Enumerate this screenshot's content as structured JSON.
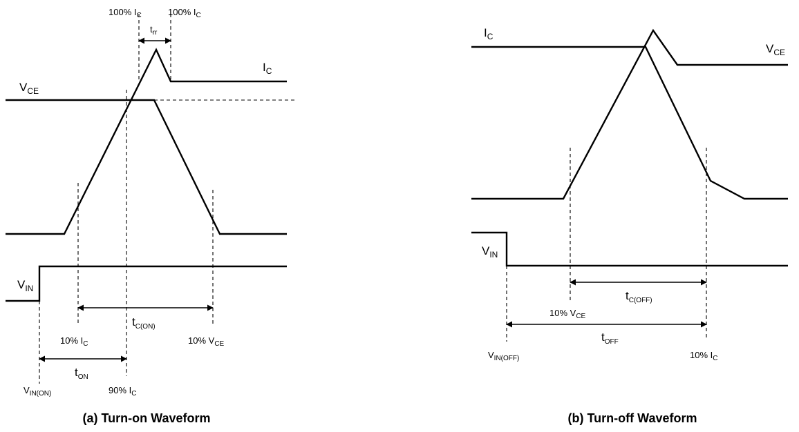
{
  "turn_on": {
    "caption": "(a) Turn-on Waveform",
    "signals": {
      "vce": {
        "main": "V",
        "sub": "CE"
      },
      "ic": {
        "main": "I",
        "sub": "C"
      },
      "vin": {
        "main": "V",
        "sub": "IN"
      }
    },
    "top_markers": {
      "left": {
        "main": "100% I",
        "sub": "C"
      },
      "right": {
        "main": "100% I",
        "sub": "C"
      },
      "trr": {
        "main": "t",
        "sub": "rr"
      }
    },
    "markers": {
      "ic10": {
        "main": "10% I",
        "sub": "C"
      },
      "vce10": {
        "main": "10% V",
        "sub": "CE"
      },
      "ic90": {
        "main": "90% I",
        "sub": "C"
      },
      "vin_on": {
        "main": "V",
        "sub": "IN(ON)"
      }
    },
    "intervals": {
      "tc_on": {
        "main": "t",
        "sub": "C(ON)"
      },
      "t_on": {
        "main": "t",
        "sub": "ON"
      }
    }
  },
  "turn_off": {
    "caption": "(b) Turn-off Waveform",
    "signals": {
      "ic": {
        "main": "I",
        "sub": "C"
      },
      "vce": {
        "main": "V",
        "sub": "CE"
      },
      "vin": {
        "main": "V",
        "sub": "IN"
      }
    },
    "markers": {
      "vce10": {
        "main": "10% V",
        "sub": "CE"
      },
      "ic10": {
        "main": "10% I",
        "sub": "C"
      },
      "vin_off": {
        "main": "V",
        "sub": "IN(OFF)"
      }
    },
    "intervals": {
      "tc_off": {
        "main": "t",
        "sub": "C(OFF)"
      },
      "t_off": {
        "main": "t",
        "sub": "OFF"
      }
    }
  }
}
